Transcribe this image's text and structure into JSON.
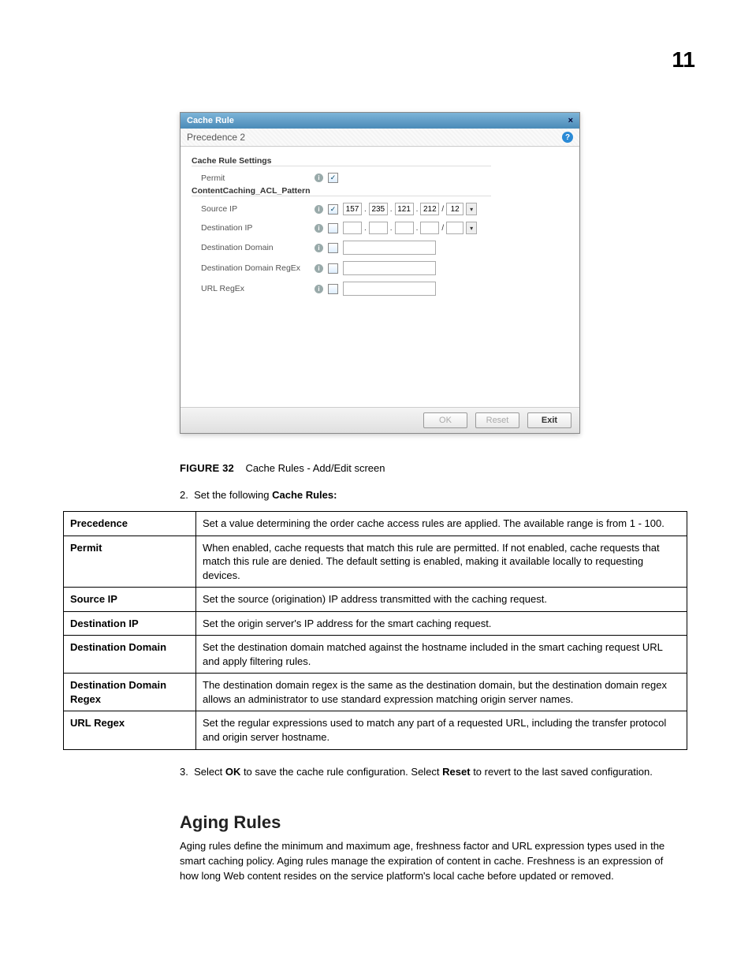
{
  "page": {
    "number": "11"
  },
  "dialog": {
    "title": "Cache Rule",
    "close_glyph": "×",
    "precedence_label": "Precedence",
    "precedence_value": "2",
    "help_glyph": "?",
    "section_settings": "Cache Rule Settings",
    "permit_label": "Permit",
    "section_acl": "ContentCaching_ACL_Pattern",
    "rows": {
      "source_ip": {
        "label": "Source IP",
        "checked": true,
        "ip": [
          "157",
          "235",
          "121",
          "212"
        ],
        "mask": "12"
      },
      "dest_ip": {
        "label": "Destination IP",
        "checked": false,
        "ip": [
          ".",
          ".",
          ".",
          "."
        ],
        "mask": ""
      },
      "dest_dom": {
        "label": "Destination Domain",
        "checked": false,
        "value": ""
      },
      "dest_dom_re": {
        "label": "Destination Domain RegEx",
        "checked": false,
        "value": ""
      },
      "url_re": {
        "label": "URL RegEx",
        "checked": false,
        "value": ""
      }
    },
    "footer": {
      "ok": "OK",
      "reset": "Reset",
      "exit": "Exit"
    }
  },
  "figure": {
    "label": "FIGURE 32",
    "caption": "Cache Rules - Add/Edit screen"
  },
  "step2": {
    "num": "2.",
    "text_a": "Set the following ",
    "bold": "Cache Rules:"
  },
  "table": [
    {
      "param": "Precedence",
      "desc": "Set a value determining the order cache access rules are applied. The available range is from 1 - 100."
    },
    {
      "param": "Permit",
      "desc": "When enabled, cache requests that match this rule are permitted. If not enabled, cache requests that match this rule are denied. The default setting is enabled, making it available locally to requesting devices."
    },
    {
      "param": "Source IP",
      "desc": "Set the source (origination) IP address transmitted with the caching request."
    },
    {
      "param": "Destination IP",
      "desc": "Set the origin server's IP address for the smart caching request."
    },
    {
      "param": "Destination Domain",
      "desc": "Set the destination domain matched against the hostname included in the smart caching request URL and apply filtering rules."
    },
    {
      "param": "Destination Domain Regex",
      "desc": "The destination domain regex is the same as the destination domain, but the destination domain regex allows an administrator to use standard expression matching origin server names."
    },
    {
      "param": "URL Regex",
      "desc": "Set the regular expressions used to match any part of a requested URL, including the transfer protocol and origin server hostname."
    }
  ],
  "step3": {
    "num": "3.",
    "a": "Select ",
    "ok": "OK",
    "b": " to save the cache rule configuration. Select ",
    "reset": "Reset",
    "c": " to revert to the last saved configuration."
  },
  "aging": {
    "heading": "Aging Rules",
    "body": "Aging rules define the minimum and maximum age, freshness factor and URL expression types used in the smart caching policy. Aging rules manage the expiration of content in cache. Freshness is an expression of how long Web content resides on the service platform's local cache before updated or removed."
  }
}
